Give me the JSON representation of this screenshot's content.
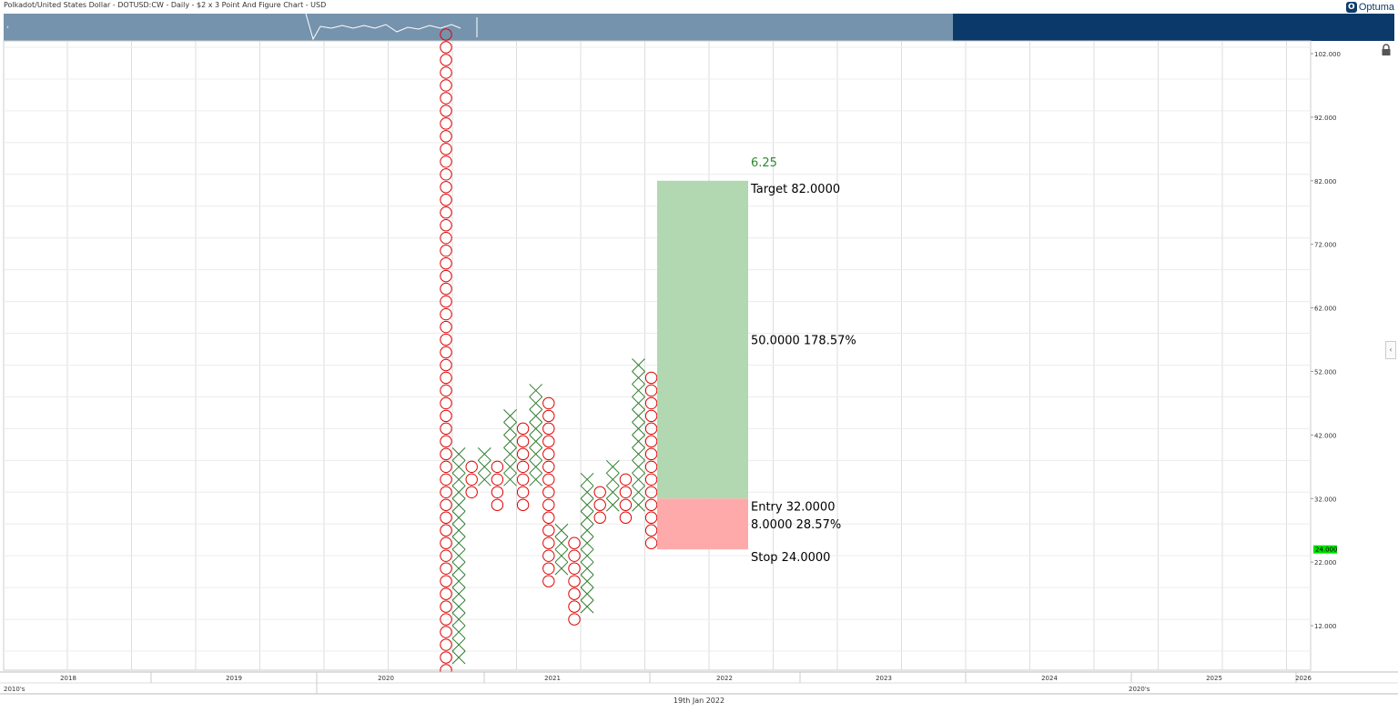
{
  "header": {
    "title": "Polkadot/United States Dollar - DOTUSD:CW - Daily - $2 x 3 Point And Figure Chart - USD",
    "logo_text": "Optuma"
  },
  "footer": {
    "date": "19th Jan 2022"
  },
  "chart_data": {
    "type": "point-and-figure",
    "title": "Polkadot/United States Dollar - DOTUSD:CW - Daily - $2 x 3 Point And Figure Chart - USD",
    "box_size": 2,
    "reversal": 3,
    "y_axis": {
      "ylim": [
        5,
        104
      ],
      "ticks": [
        "12.000",
        "22.000",
        "32.000",
        "42.000",
        "52.000",
        "62.000",
        "72.000",
        "82.000",
        "92.000",
        "102.000"
      ],
      "current_price_label": "24.000"
    },
    "x_axis": {
      "years": [
        "2018",
        "2019",
        "2020",
        "2021",
        "2022",
        "2023",
        "2024",
        "2025",
        "2026"
      ],
      "decades": [
        "2010's",
        "2020's"
      ]
    },
    "columns": [
      {
        "type": "O",
        "from": 5,
        "to": 105
      },
      {
        "type": "X",
        "from": 7,
        "to": 39
      },
      {
        "type": "O",
        "from": 33,
        "to": 37
      },
      {
        "type": "X",
        "from": 35,
        "to": 39
      },
      {
        "type": "O",
        "from": 31,
        "to": 37
      },
      {
        "type": "X",
        "from": 35,
        "to": 45
      },
      {
        "type": "O",
        "from": 31,
        "to": 43
      },
      {
        "type": "X",
        "from": 35,
        "to": 49
      },
      {
        "type": "O",
        "from": 19,
        "to": 47
      },
      {
        "type": "X",
        "from": 21,
        "to": 27
      },
      {
        "type": "O",
        "from": 13,
        "to": 25
      },
      {
        "type": "X",
        "from": 15,
        "to": 35
      },
      {
        "type": "O",
        "from": 29,
        "to": 33
      },
      {
        "type": "X",
        "from": 31,
        "to": 37
      },
      {
        "type": "O",
        "from": 29,
        "to": 35
      },
      {
        "type": "X",
        "from": 31,
        "to": 53
      },
      {
        "type": "O",
        "from": 25,
        "to": 51
      }
    ],
    "trade": {
      "target": 82,
      "entry": 32,
      "stop": 24,
      "ratio_label": "6.25",
      "target_label": "Target  82.0000",
      "entry_label": "Entry  32.0000",
      "stop_label": "Stop  24.0000",
      "profit_label": "50.0000  178.57%",
      "risk_label": "8.0000  28.57%",
      "profit_color": "#b1d8b0",
      "risk_color": "#ffaaaa"
    },
    "colors": {
      "x_color": "#2e7d2e",
      "o_color": "#e00000",
      "grid": "#dddddd",
      "ratio_color": "#2e8b2e",
      "price_tag": "#00e000"
    }
  }
}
